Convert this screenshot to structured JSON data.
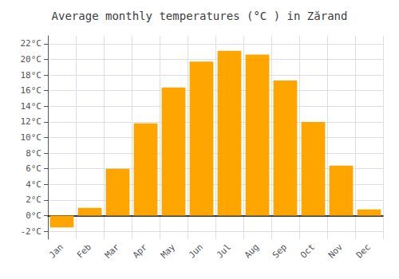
{
  "chart_data": {
    "type": "bar",
    "title": "Average monthly temperatures (°C ) in Zărand",
    "categories": [
      "Jan",
      "Feb",
      "Mar",
      "Apr",
      "May",
      "Jun",
      "Jul",
      "Aug",
      "Sep",
      "Oct",
      "Nov",
      "Dec"
    ],
    "values": [
      -1.5,
      1.0,
      6.0,
      11.8,
      16.4,
      19.7,
      21.1,
      20.6,
      17.3,
      12.0,
      6.4,
      0.8
    ],
    "color": "#FFA500",
    "ylim": [
      -3,
      23
    ],
    "yticks": [
      {
        "value": -2,
        "label": "-2°C"
      },
      {
        "value": 0,
        "label": "0°C"
      },
      {
        "value": 2,
        "label": "2°C"
      },
      {
        "value": 4,
        "label": "4°C"
      },
      {
        "value": 6,
        "label": "6°C"
      },
      {
        "value": 8,
        "label": "8°C"
      },
      {
        "value": 10,
        "label": "10°C"
      },
      {
        "value": 12,
        "label": "12°C"
      },
      {
        "value": 14,
        "label": "14°C"
      },
      {
        "value": 16,
        "label": "16°C"
      },
      {
        "value": 18,
        "label": "18°C"
      },
      {
        "value": 20,
        "label": "20°C"
      },
      {
        "value": 22,
        "label": "22°C"
      }
    ],
    "grid": true
  }
}
